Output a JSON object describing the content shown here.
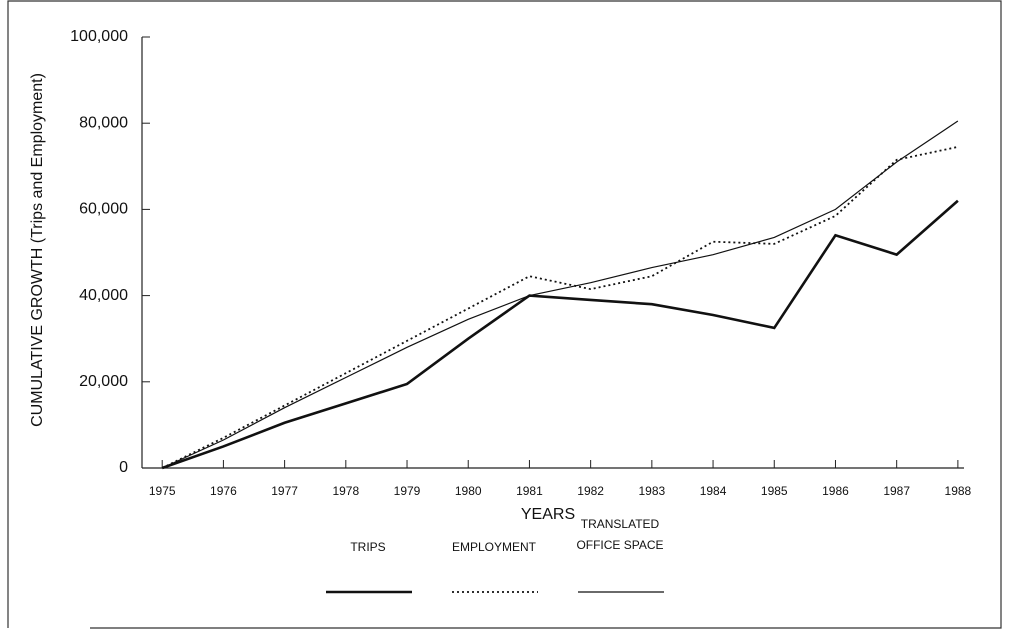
{
  "chart_data": {
    "type": "line",
    "xlabel": "YEARS",
    "ylabel": "CUMULATIVE GROWTH (Trips and Employment)",
    "x": [
      1975,
      1976,
      1977,
      1978,
      1979,
      1980,
      1981,
      1982,
      1983,
      1984,
      1985,
      1986,
      1987,
      1988
    ],
    "xlim": [
      1974.67,
      1988.1
    ],
    "xticks": [
      1975,
      1976,
      1977,
      1978,
      1979,
      1980,
      1981,
      1982,
      1983,
      1984,
      1985,
      1986,
      1987,
      1988
    ],
    "ylim": [
      0,
      100000
    ],
    "yticks": [
      0,
      {
        "value": 20000,
        "label": "20,000"
      },
      {
        "value": 40000,
        "label": "40,000"
      },
      {
        "value": 60000,
        "label": "60,000"
      },
      {
        "value": 80000,
        "label": "80,000"
      },
      {
        "value": 100000,
        "label": "100,000"
      }
    ],
    "series": [
      {
        "name": "TRIPS",
        "color": "#111111",
        "style": "thick",
        "values": [
          0,
          5000,
          10500,
          15000,
          19500,
          30000,
          40000,
          39000,
          38000,
          35500,
          32500,
          54000,
          49500,
          62000
        ]
      },
      {
        "name": "EMPLOYMENT",
        "color": "#111111",
        "style": "dotted",
        "values": [
          0,
          7000,
          14500,
          22000,
          29500,
          37000,
          44500,
          41500,
          44500,
          52500,
          52000,
          58500,
          71500,
          74500
        ]
      },
      {
        "name": "TRANSLATED OFFICE SPACE",
        "color": "#111111",
        "style": "thin",
        "values": [
          0,
          6500,
          14000,
          21000,
          28000,
          34500,
          40000,
          43000,
          46500,
          49500,
          53500,
          60000,
          71000,
          80500
        ]
      }
    ]
  }
}
